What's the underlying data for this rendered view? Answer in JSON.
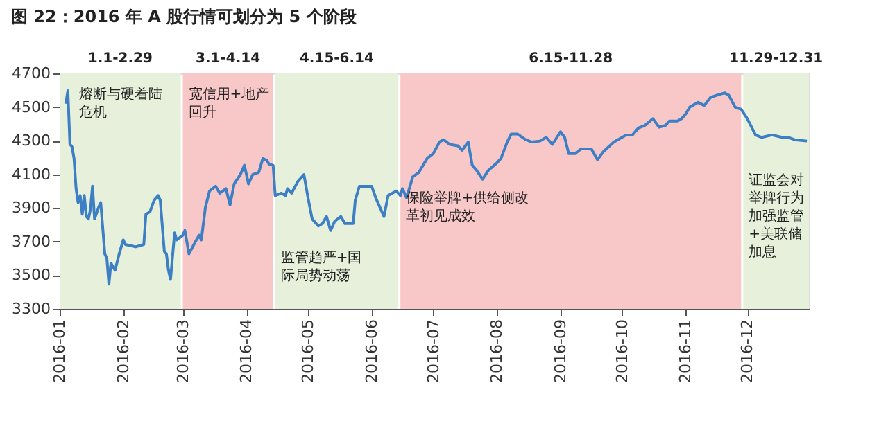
{
  "chart_data": {
    "type": "line",
    "title": "图 22：2016 年 A 股行情可划分为 5 个阶段",
    "x": [
      "2016-01-04",
      "2016-01-05",
      "2016-01-06",
      "2016-01-07",
      "2016-01-08",
      "2016-01-09",
      "2016-01-10",
      "2016-01-11",
      "2016-01-12",
      "2016-01-13",
      "2016-01-14",
      "2016-01-15",
      "2016-01-16",
      "2016-01-17",
      "2016-01-18",
      "2016-01-20",
      "2016-01-21",
      "2016-01-23",
      "2016-01-24",
      "2016-01-25",
      "2016-01-26",
      "2016-01-28",
      "2016-01-30",
      "2016-02-01",
      "2016-02-02",
      "2016-02-07",
      "2016-02-11",
      "2016-02-12",
      "2016-02-14",
      "2016-02-16",
      "2016-02-18",
      "2016-02-19",
      "2016-02-21",
      "2016-02-22",
      "2016-02-23",
      "2016-02-24",
      "2016-02-26",
      "2016-02-27",
      "2016-03-01",
      "2016-03-02",
      "2016-03-04",
      "2016-03-07",
      "2016-03-09",
      "2016-03-10",
      "2016-03-12",
      "2016-03-14",
      "2016-03-17",
      "2016-03-19",
      "2016-03-22",
      "2016-03-24",
      "2016-03-26",
      "2016-03-29",
      "2016-03-31",
      "2016-04-02",
      "2016-04-04",
      "2016-04-07",
      "2016-04-09",
      "2016-04-11",
      "2016-04-12",
      "2016-04-14",
      "2016-04-15",
      "2016-04-18",
      "2016-04-20",
      "2016-04-21",
      "2016-04-23",
      "2016-04-26",
      "2016-04-29",
      "2016-05-01",
      "2016-05-03",
      "2016-05-06",
      "2016-05-08",
      "2016-05-10",
      "2016-05-12",
      "2016-05-14",
      "2016-05-17",
      "2016-05-19",
      "2016-05-23",
      "2016-05-24",
      "2016-05-26",
      "2016-06-01",
      "2016-06-03",
      "2016-06-07",
      "2016-06-09",
      "2016-06-13",
      "2016-06-15",
      "2016-06-16",
      "2016-06-18",
      "2016-06-21",
      "2016-06-24",
      "2016-06-28",
      "2016-07-01",
      "2016-07-04",
      "2016-07-06",
      "2016-07-09",
      "2016-07-13",
      "2016-07-15",
      "2016-07-18",
      "2016-07-20",
      "2016-07-22",
      "2016-07-25",
      "2016-07-28",
      "2016-08-01",
      "2016-08-03",
      "2016-08-06",
      "2016-08-08",
      "2016-08-11",
      "2016-08-15",
      "2016-08-18",
      "2016-08-22",
      "2016-08-25",
      "2016-08-28",
      "2016-09-01",
      "2016-09-03",
      "2016-09-05",
      "2016-09-08",
      "2016-09-11",
      "2016-09-16",
      "2016-09-19",
      "2016-09-22",
      "2016-09-27",
      "2016-10-03",
      "2016-10-06",
      "2016-10-09",
      "2016-10-12",
      "2016-10-16",
      "2016-10-19",
      "2016-10-22",
      "2016-10-24",
      "2016-10-28",
      "2016-10-30",
      "2016-11-01",
      "2016-11-03",
      "2016-11-07",
      "2016-11-10",
      "2016-11-13",
      "2016-11-16",
      "2016-11-20",
      "2016-11-22",
      "2016-11-25",
      "2016-11-28",
      "2016-12-01",
      "2016-12-05",
      "2016-12-08",
      "2016-12-13",
      "2016-12-18",
      "2016-12-21",
      "2016-12-24",
      "2016-12-30"
    ],
    "values": [
      4520,
      4597,
      4280,
      4265,
      4195,
      4015,
      3932,
      3974,
      3863,
      3974,
      3850,
      3835,
      3890,
      4030,
      3835,
      3905,
      3932,
      3627,
      3600,
      3447,
      3572,
      3530,
      3627,
      3710,
      3683,
      3669,
      3683,
      3863,
      3877,
      3946,
      3974,
      3946,
      3641,
      3627,
      3530,
      3475,
      3752,
      3710,
      3738,
      3766,
      3627,
      3697,
      3738,
      3710,
      3904,
      4001,
      4029,
      3988,
      4015,
      3918,
      4043,
      4098,
      4154,
      4043,
      4098,
      4112,
      4195,
      4182,
      4160,
      4154,
      3974,
      3988,
      3974,
      4015,
      3988,
      4057,
      4098,
      3960,
      3835,
      3793,
      3807,
      3849,
      3766,
      3821,
      3849,
      3807,
      3807,
      3946,
      4029,
      4029,
      3960,
      3849,
      3974,
      4001,
      3974,
      4015,
      3960,
      4085,
      4112,
      4195,
      4223,
      4292,
      4306,
      4278,
      4270,
      4243,
      4292,
      4154,
      4126,
      4071,
      4126,
      4168,
      4195,
      4292,
      4340,
      4340,
      4306,
      4292,
      4298,
      4320,
      4278,
      4353,
      4320,
      4223,
      4223,
      4251,
      4251,
      4187,
      4237,
      4292,
      4334,
      4334,
      4376,
      4390,
      4431,
      4381,
      4390,
      4417,
      4417,
      4431,
      4459,
      4500,
      4528,
      4509,
      4556,
      4570,
      4584,
      4570,
      4500,
      4486,
      4431,
      4334,
      4320,
      4334,
      4320,
      4320,
      4306,
      4298
    ],
    "color": "#3d7fc4",
    "xlim": [
      "2016-01-01",
      "2016-12-31"
    ],
    "xticks": [
      "2016-01",
      "2016-02",
      "2016-03",
      "2016-04",
      "2016-05",
      "2016-06",
      "2016-07",
      "2016-08",
      "2016-09",
      "2016-10",
      "2016-11",
      "2016-12"
    ],
    "ylim": [
      3300,
      4700
    ],
    "yticks": [
      3300,
      3500,
      3700,
      3900,
      4100,
      4300,
      4500,
      4700
    ],
    "bands": [
      {
        "axis": "x",
        "from": "2016-01-01",
        "to": "2016-02-29",
        "label": "1.1-2.29",
        "color": "#e6f0da"
      },
      {
        "axis": "x",
        "from": "2016-03-01",
        "to": "2016-04-14",
        "label": "3.1-4.14",
        "color": "#f8c8c8"
      },
      {
        "axis": "x",
        "from": "2016-04-15",
        "to": "2016-06-14",
        "label": "4.15-6.14",
        "color": "#e6f0da"
      },
      {
        "axis": "x",
        "from": "2016-06-15",
        "to": "2016-11-28",
        "label": "6.15-11.28",
        "color": "#f8c8c8"
      },
      {
        "axis": "x",
        "from": "2016-11-29",
        "to": "2016-12-31",
        "label": "11.29-12.31",
        "color": "#e6f0da"
      }
    ],
    "annotations": [
      "熔断与硬着陆危机",
      "宽信用+地产回升",
      "监管趋严+国际局势动荡",
      "保险举牌+供给侧改革初见成效",
      "证监会对举牌行为加强监管+美联储加息"
    ],
    "grid": false
  }
}
